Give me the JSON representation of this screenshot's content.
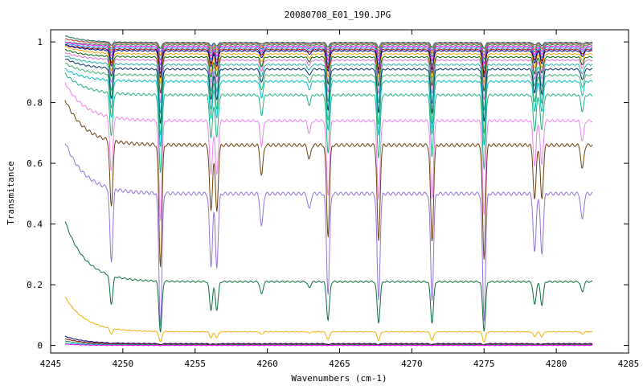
{
  "chart_data": {
    "type": "line",
    "title": "20080708_E01_190.JPG",
    "xlabel": "Wavenumbers (cm-1)",
    "ylabel": "Transmitance",
    "xlim": [
      4245,
      4285
    ],
    "ylim": [
      -0.025,
      1.04
    ],
    "xticks": [
      "4245",
      "4250",
      "4255",
      "4260",
      "4265",
      "4270",
      "4275",
      "4280",
      "4285"
    ],
    "yticks": [
      "0",
      "0.2",
      "0.4",
      "0.6",
      "0.8",
      "1"
    ],
    "grid": false,
    "legend": "none",
    "x_range_data": [
      4246,
      4282.5
    ],
    "absorption_lines": [
      {
        "x": 4249.2,
        "rel_depth": 0.55
      },
      {
        "x": 4252.6,
        "rel_depth": 1.0
      },
      {
        "x": 4256.1,
        "rel_depth": 0.55
      },
      {
        "x": 4256.5,
        "rel_depth": 0.55
      },
      {
        "x": 4259.6,
        "rel_depth": 0.25
      },
      {
        "x": 4262.9,
        "rel_depth": 0.12
      },
      {
        "x": 4264.2,
        "rel_depth": 0.75
      },
      {
        "x": 4267.7,
        "rel_depth": 0.8
      },
      {
        "x": 4271.4,
        "rel_depth": 0.8
      },
      {
        "x": 4275.0,
        "rel_depth": 0.95
      },
      {
        "x": 4278.5,
        "rel_depth": 0.45
      },
      {
        "x": 4279.0,
        "rel_depth": 0.45
      },
      {
        "x": 4281.8,
        "rel_depth": 0.2
      }
    ],
    "series": [
      {
        "color": "#0b6b3a",
        "y_start": 1.02,
        "baseline": 0.998,
        "depth": 0.02
      },
      {
        "color": "#7b68ee",
        "y_start": 1.01,
        "baseline": 0.996,
        "depth": 0.03
      },
      {
        "color": "#d2691e",
        "y_start": 1.01,
        "baseline": 0.994,
        "depth": 0.04
      },
      {
        "color": "#2e8b57",
        "y_start": 1.0,
        "baseline": 0.99,
        "depth": 0.05
      },
      {
        "color": "#ff00ff",
        "y_start": 1.0,
        "baseline": 0.985,
        "depth": 0.06
      },
      {
        "color": "#1e90ff",
        "y_start": 0.995,
        "baseline": 0.98,
        "depth": 0.07
      },
      {
        "color": "#8b0000",
        "y_start": 0.99,
        "baseline": 0.975,
        "depth": 0.08
      },
      {
        "color": "#00008b",
        "y_start": 0.99,
        "baseline": 0.97,
        "depth": 0.09
      },
      {
        "color": "#ffa500",
        "y_start": 0.985,
        "baseline": 0.96,
        "depth": 0.1
      },
      {
        "color": "#006400",
        "y_start": 0.975,
        "baseline": 0.95,
        "depth": 0.12
      },
      {
        "color": "#da70d6",
        "y_start": 0.965,
        "baseline": 0.94,
        "depth": 0.14
      },
      {
        "color": "#20b2aa",
        "y_start": 0.955,
        "baseline": 0.925,
        "depth": 0.16
      },
      {
        "color": "#003366",
        "y_start": 0.945,
        "baseline": 0.91,
        "depth": 0.18
      },
      {
        "color": "#3cb371",
        "y_start": 0.93,
        "baseline": 0.89,
        "depth": 0.2
      },
      {
        "color": "#00bfbf",
        "y_start": 0.91,
        "baseline": 0.87,
        "depth": 0.22
      },
      {
        "color": "#20b27a",
        "y_start": 0.895,
        "baseline": 0.825,
        "depth": 0.26
      },
      {
        "color": "#ee82ee",
        "y_start": 0.865,
        "baseline": 0.74,
        "depth": 0.33
      },
      {
        "color": "#6b3f0a",
        "y_start": 0.81,
        "baseline": 0.66,
        "depth": 0.4
      },
      {
        "color": "#9370db",
        "y_start": 0.67,
        "baseline": 0.5,
        "depth": 0.44
      },
      {
        "color": "#0a6e3c",
        "y_start": 0.41,
        "baseline": 0.21,
        "depth": 0.17
      },
      {
        "color": "#f0b000",
        "y_start": 0.16,
        "baseline": 0.045,
        "depth": 0.035
      },
      {
        "color": "#000080",
        "y_start": 0.03,
        "baseline": 0.006,
        "depth": 0.004
      },
      {
        "color": "#8b0000",
        "y_start": 0.022,
        "baseline": 0.004,
        "depth": 0.003
      },
      {
        "color": "#2e8b57",
        "y_start": 0.015,
        "baseline": 0.002,
        "depth": 0.002
      },
      {
        "color": "#00bfbf",
        "y_start": 0.008,
        "baseline": 0.001,
        "depth": 0.001
      },
      {
        "color": "#ff00ff",
        "y_start": 0.004,
        "baseline": 0.0,
        "depth": 0.0
      }
    ]
  }
}
